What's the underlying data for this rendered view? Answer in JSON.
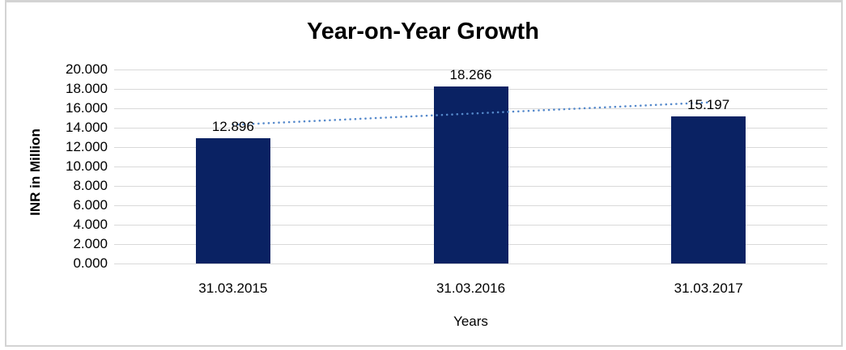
{
  "chart_data": {
    "type": "bar",
    "title": "Year-on-Year Growth",
    "xlabel": "Years",
    "ylabel": "INR in Million",
    "categories": [
      "31.03.2015",
      "31.03.2016",
      "31.03.2017"
    ],
    "values": [
      12.896,
      18.266,
      15.197
    ],
    "data_labels": [
      "12.896",
      "18.266",
      "15.197"
    ],
    "ylim": [
      0,
      20
    ],
    "ytick_step": 2,
    "ytick_labels": [
      "0.000",
      "2.000",
      "4.000",
      "6.000",
      "8.000",
      "10.000",
      "12.000",
      "14.000",
      "16.000",
      "18.000",
      "20.000"
    ],
    "grid": true,
    "legend": "none",
    "trendline": {
      "type": "linear",
      "style": "dotted",
      "endpoint_values": [
        14.302,
        16.604
      ]
    },
    "colors": {
      "bar": "#0A2263",
      "trendline": "#5589CB",
      "gridline": "#D9D9D9",
      "text": "#000000",
      "title": "#000000",
      "frame_border": "#D3D3D3",
      "background": "#FFFFFF"
    }
  }
}
